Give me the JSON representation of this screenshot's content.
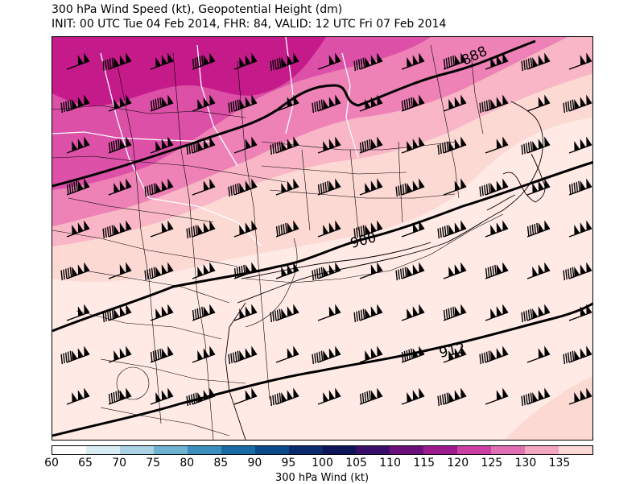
{
  "title_line1": "300 hPa Wind Speed (kt), Geopotential Height (dm)",
  "title_line2": "INIT: 00 UTC Tue 04 Feb 2014, FHR: 84, VALID: 12 UTC Fri 07 Feb 2014",
  "contour_labels": [
    "888",
    "900",
    "912"
  ],
  "colorbar": {
    "label": "300 hPa Wind (kt)",
    "ticks": [
      "60",
      "65",
      "70",
      "75",
      "80",
      "85",
      "90",
      "95",
      "100",
      "105",
      "110",
      "115",
      "120",
      "125",
      "130",
      "135"
    ],
    "colors": [
      "#ffffff",
      "#d9edf5",
      "#a9d3e5",
      "#6fb3d2",
      "#3a8fbf",
      "#1a6aa5",
      "#0b4a8a",
      "#0a2b6e",
      "#0d1458",
      "#3a0f6b",
      "#6b0f7a",
      "#9b1a8c",
      "#cc3fa3",
      "#e06fb4",
      "#f2a6c0",
      "#fcd9d6"
    ]
  },
  "colors": {
    "magenta_dark": "#c51b8a",
    "magenta": "#dd50a8",
    "pink": "#ee82b6",
    "light_pink": "#f8b6c6",
    "pale_pink": "#fdd9d4",
    "palest": "#ffeae6"
  }
}
